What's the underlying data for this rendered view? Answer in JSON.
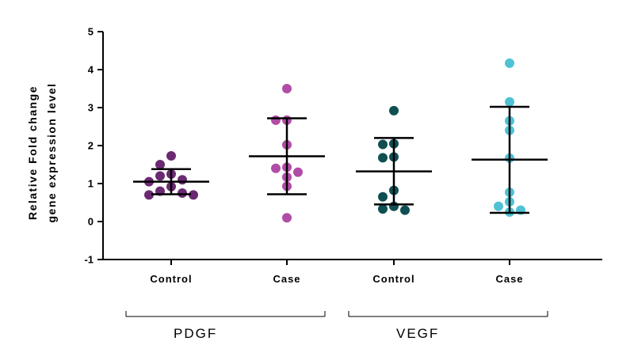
{
  "chart_data": {
    "type": "scatter",
    "subtype": "dot plot with mean and SD error bars",
    "ylabel": [
      "Relative Fold change",
      "gene expression level"
    ],
    "ylim": [
      -1,
      5
    ],
    "yticks": [
      -1,
      0,
      1,
      2,
      3,
      4,
      5
    ],
    "categories": [
      "Control",
      "Case",
      "Control",
      "Case"
    ],
    "groups": [
      {
        "label": "PDGF",
        "categories": [
          0,
          1
        ]
      },
      {
        "label": "VEGF",
        "categories": [
          2,
          3
        ]
      }
    ],
    "series": [
      {
        "name": "PDGF Control",
        "color": "#6a2a72",
        "values": [
          1.73,
          1.5,
          1.25,
          1.1,
          1.2,
          1.05,
          0.92,
          0.8,
          0.75,
          0.7,
          0.7
        ],
        "mean": 1.05,
        "sd_upper": 1.38,
        "sd_lower": 0.72
      },
      {
        "name": "PDGF Case",
        "color": "#b04da6",
        "values": [
          3.5,
          2.67,
          2.67,
          2.02,
          1.43,
          1.4,
          1.3,
          1.17,
          0.93,
          0.1
        ],
        "mean": 1.72,
        "sd_upper": 2.72,
        "sd_lower": 0.72
      },
      {
        "name": "VEGF Control",
        "color": "#0f4f52",
        "values": [
          2.92,
          2.05,
          2.03,
          1.7,
          1.68,
          0.82,
          0.65,
          0.4,
          0.33,
          0.3
        ],
        "mean": 1.32,
        "sd_upper": 2.2,
        "sd_lower": 0.45
      },
      {
        "name": "VEGF Case",
        "color": "#4fc2d4",
        "values": [
          4.17,
          3.15,
          2.65,
          2.4,
          1.67,
          0.77,
          0.52,
          0.4,
          0.3,
          0.25
        ],
        "mean": 1.63,
        "sd_upper": 3.02,
        "sd_lower": 0.23
      }
    ]
  }
}
